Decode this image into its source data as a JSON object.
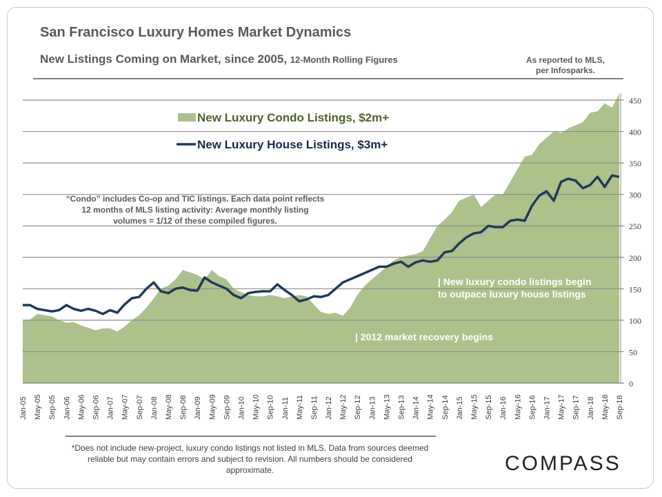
{
  "header": {
    "title": "San Francisco Luxury Homes Market Dynamics",
    "subtitle_main": "New Listings Coming on Market, since 2005,",
    "subtitle_small": "12-Month Rolling Figures",
    "source_line1": "As reported to MLS,",
    "source_line2": "per Infosparks."
  },
  "footer": {
    "note": "*Does not include new-project, luxury condo listings not listed in MLS. Data from sources deemed reliable but may contain errors and subject to revision.  All numbers should be considered approximate.",
    "logo": "COMPASS"
  },
  "chart_data": {
    "type": "area+line",
    "title": "New Listings Coming on Market, since 2005, 12-Month Rolling Figures",
    "x_start": "Jan-05",
    "x_step_months": 2,
    "x_tick_labels": [
      "Jan-05",
      "May-05",
      "Sep-05",
      "Jan-06",
      "May-06",
      "Sep-06",
      "Jan-07",
      "May-07",
      "Sep-07",
      "Jan-08",
      "May-08",
      "Sep-08",
      "Jan-09",
      "May-09",
      "Sep-09",
      "Jan-10",
      "May-10",
      "Sep-10",
      "Jan-11",
      "May-11",
      "Sep-11",
      "Jan-12",
      "May-12",
      "Sep-12",
      "Jan-13",
      "May-13",
      "Sep-13",
      "Jan-14",
      "May-14",
      "Sep-14",
      "Jan-15",
      "May-15",
      "Sep-15",
      "Jan-16",
      "May-16",
      "Sep-16",
      "Jan-17",
      "May-17",
      "Sep-17",
      "Jan-18",
      "May-18",
      "Sep-18"
    ],
    "y_ticks": [
      0,
      50,
      100,
      150,
      200,
      250,
      300,
      350,
      400,
      450
    ],
    "ylim": [
      0,
      450
    ],
    "y_axis_side": "right",
    "grid": true,
    "legend_placement": "top-left",
    "series": [
      {
        "name": "New Luxury Condo Listings, $2m+",
        "type": "area",
        "color": "#adc18a",
        "label_color": "#4f6228",
        "values": [
          100,
          101,
          110,
          108,
          106,
          100,
          96,
          97,
          92,
          88,
          84,
          87,
          87,
          82,
          90,
          100,
          108,
          120,
          135,
          150,
          155,
          165,
          180,
          176,
          172,
          165,
          180,
          170,
          165,
          150,
          145,
          140,
          138,
          138,
          140,
          138,
          135,
          138,
          140,
          138,
          125,
          113,
          110,
          112,
          107,
          120,
          140,
          155,
          165,
          175,
          185,
          195,
          200,
          203,
          205,
          210,
          230,
          250,
          260,
          272,
          290,
          295,
          300,
          280,
          290,
          300,
          300,
          320,
          340,
          360,
          363,
          380,
          390,
          400,
          398,
          405,
          410,
          415,
          430,
          432,
          445,
          438,
          460
        ]
      },
      {
        "name": "New Luxury House Listings, $3m+",
        "type": "line",
        "color": "#1f3a5c",
        "label_color": "#17294a",
        "values": [
          124,
          124,
          118,
          116,
          114,
          116,
          124,
          118,
          115,
          118,
          115,
          110,
          116,
          112,
          125,
          135,
          137,
          150,
          160,
          146,
          143,
          150,
          152,
          148,
          147,
          168,
          160,
          155,
          150,
          140,
          135,
          143,
          145,
          146,
          146,
          157,
          148,
          140,
          130,
          133,
          138,
          137,
          140,
          150,
          160,
          165,
          170,
          175,
          180,
          185,
          185,
          190,
          193,
          185,
          192,
          195,
          193,
          195,
          208,
          210,
          222,
          232,
          238,
          240,
          250,
          248,
          248,
          258,
          260,
          258,
          282,
          298,
          305,
          290,
          320,
          325,
          322,
          310,
          315,
          328,
          312,
          330,
          328
        ]
      }
    ],
    "annotations": [
      "“Condo” includes Co-op and TIC listings. Each data point reflects 12 months of MLS listing activity:  Average monthly listing volumes = 1/12 of these compiled figures.",
      "| New luxury condo listings begin",
      "to outpace luxury house listings",
      "| 2012 market recovery begins"
    ]
  }
}
